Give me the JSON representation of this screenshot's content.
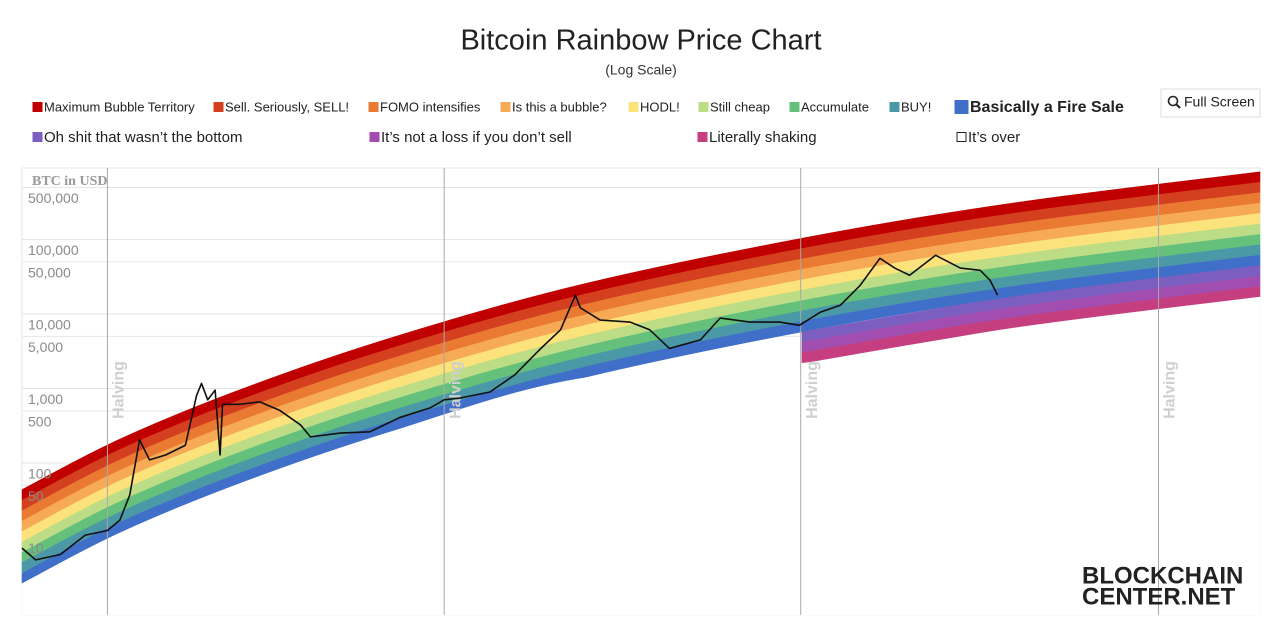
{
  "chart_data": {
    "type": "line",
    "title": "Bitcoin Rainbow Price Chart",
    "subtitle": "(Log Scale)",
    "y_label": "BTC in USD",
    "log_scale": true,
    "grid": true,
    "xlim": [
      0,
      100
    ],
    "ylim": [
      0.91,
      912000
    ],
    "yticks": [
      10,
      50,
      100,
      500,
      {
        "value": 1000,
        "label": "1,000"
      },
      {
        "value": 5000,
        "label": "5,000"
      },
      {
        "value": 10000,
        "label": "10,000"
      },
      {
        "value": 50000,
        "label": "50,000"
      },
      {
        "value": 100000,
        "label": "100,000"
      },
      {
        "value": 500000,
        "label": "500,000"
      }
    ],
    "bands": {
      "x": [
        0,
        8,
        18,
        30,
        45,
        63,
        80,
        100
      ],
      "series": [
        {
          "name": "Maximum Bubble Territory",
          "color": "#c00000",
          "values": [
            44,
            213,
            1020,
            4900,
            24500,
            104000,
            308000,
            811000
          ]
        },
        {
          "name": "Sell. Seriously, SELL!",
          "color": "#d4401f",
          "values": [
            31.5,
            154,
            739,
            3540,
            17700,
            75600,
            223000,
            587000
          ]
        },
        {
          "name": "FOMO intensifies",
          "color": "#ea7a32",
          "values": [
            22.8,
            112,
            536,
            2570,
            12900,
            54800,
            162000,
            426000
          ]
        },
        {
          "name": "Is this a bubble?",
          "color": "#f6aa55",
          "values": [
            16.6,
            81,
            388,
            1860,
            9310,
            39700,
            117000,
            308000
          ]
        },
        {
          "name": "HODL!",
          "color": "#fbe27a",
          "values": [
            12.0,
            58.7,
            281,
            1350,
            6750,
            28800,
            85000,
            224000
          ]
        },
        {
          "name": "Still cheap",
          "color": "#bcdc86",
          "values": [
            8.7,
            42.6,
            204,
            976,
            4890,
            20900,
            61600,
            162000
          ]
        },
        {
          "name": "Accumulate",
          "color": "#64c07a",
          "values": [
            6.3,
            30.8,
            148,
            707,
            3540,
            15100,
            44600,
            117000
          ]
        },
        {
          "name": "BUY!",
          "color": "#4b98a6",
          "values": [
            4.6,
            22.3,
            107,
            512,
            2570,
            11000,
            32300,
            85000
          ]
        },
        {
          "name": "Basically a Fire Sale",
          "color": "#3f6fc8",
          "values": [
            3.3,
            16.2,
            77.5,
            371,
            1860,
            7930,
            23400,
            61600
          ]
        },
        {
          "name": "Oh shit that wasn’t the bottom",
          "color": "#7b5ebf",
          "values": [
            null,
            null,
            null,
            null,
            null,
            5750,
            17000,
            44700
          ]
        },
        {
          "name": "It’s not a loss if you don’t sell",
          "color": "#a24db0",
          "values": [
            null,
            null,
            null,
            null,
            null,
            4170,
            12300,
            32300
          ]
        },
        {
          "name": "Literally shaking",
          "color": "#c53f80",
          "values": [
            null,
            null,
            null,
            null,
            null,
            3020,
            8910,
            23400
          ]
        },
        {
          "name": "It’s over",
          "color": "#ffffff",
          "values": [
            2.4,
            11.7,
            56.2,
            269,
            1350,
            2180,
            6440,
            16900
          ]
        }
      ]
    },
    "series": [
      {
        "color": "#111111",
        "x": [
          0,
          1.1,
          3.1,
          5.1,
          6.9,
          7.9,
          8.7,
          9.5,
          10.3,
          11.6,
          13.2,
          14.1,
          14.5,
          15.0,
          15.6,
          16.0,
          16.2,
          17.6,
          19.2,
          20.8,
          22.5,
          23.3,
          25.7,
          28.1,
          30.5,
          33.0,
          34.1,
          35.4,
          37.8,
          39.8,
          41.8,
          43.5,
          44.7,
          45.1,
          46.7,
          49.1,
          50.7,
          52.3,
          54.8,
          56.4,
          58.8,
          61.2,
          62.8,
          64.5,
          66.1,
          67.7,
          69.3,
          70.5,
          71.7,
          73.8,
          75.8,
          77.4,
          78.2,
          78.8
        ],
        "values": [
          7.2,
          5,
          5.9,
          10.7,
          12.4,
          17,
          37,
          204,
          110,
          128,
          173,
          807,
          1170,
          704,
          952,
          128,
          614,
          614,
          662,
          511,
          324,
          224,
          252,
          262,
          407,
          552,
          704,
          745,
          897,
          1520,
          3310,
          6140,
          17900,
          12100,
          8280,
          7800,
          6140,
          3450,
          4490,
          8830,
          7800,
          7800,
          7040,
          10600,
          13100,
          24200,
          55900,
          41400,
          33100,
          61400,
          41400,
          38600,
          28300,
          17900
        ]
      }
    ],
    "halvings": [
      {
        "x": 6.9,
        "label": "Halving"
      },
      {
        "x": 34.1,
        "label": "Halving"
      },
      {
        "x": 62.9,
        "label": "Halving"
      },
      {
        "x": 91.8,
        "label": "Halving"
      }
    ],
    "button": "Full Screen",
    "logo": [
      "BLOCKCHAIN",
      "CENTER.NET"
    ]
  }
}
